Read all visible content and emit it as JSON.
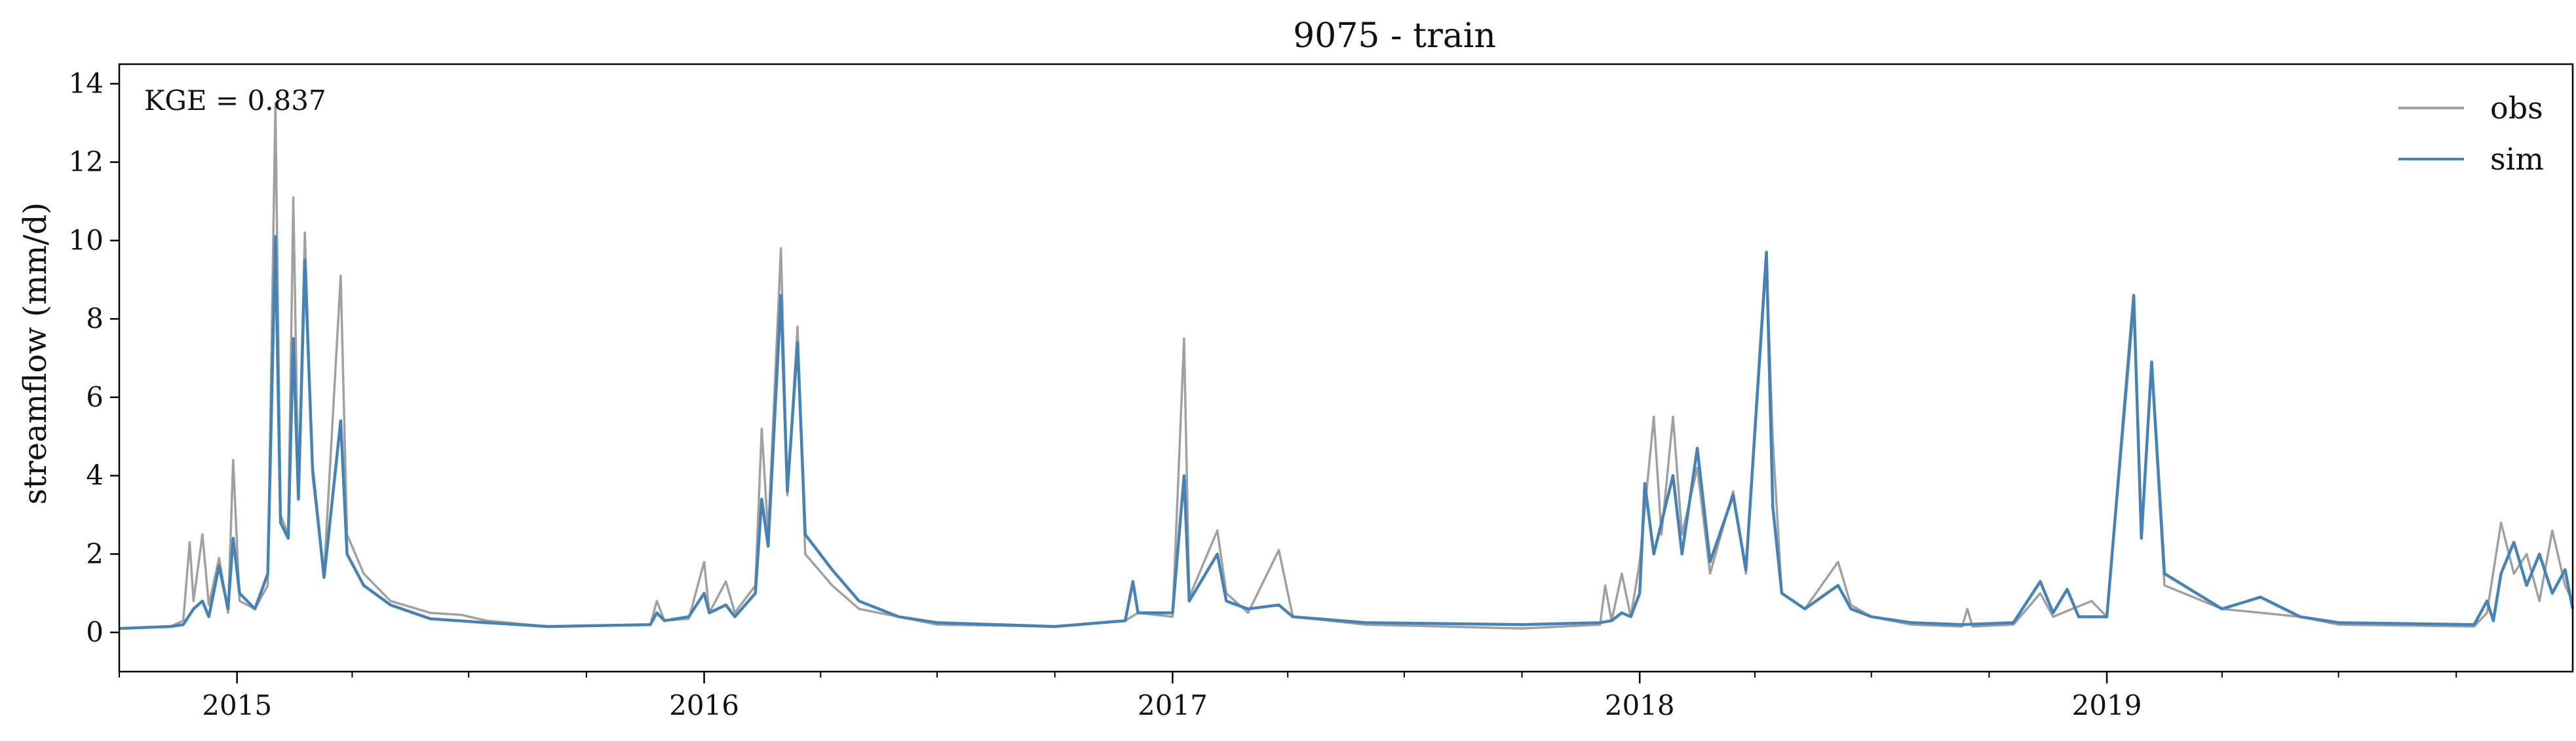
{
  "chart_data": {
    "type": "line",
    "title": "9075 - train",
    "xlabel": "",
    "ylabel": "streamflow (mm/d)",
    "annotation": "KGE = 0.837",
    "x_range": [
      "2014-10-01",
      "2019-12-31"
    ],
    "ylim": [
      -1,
      14.5
    ],
    "y_ticks": [
      "0",
      "2",
      "4",
      "6",
      "8",
      "10",
      "12",
      "14"
    ],
    "x_ticks": [
      "2015",
      "2016",
      "2017",
      "2018",
      "2019"
    ],
    "grid": false,
    "legend_position": "top-right",
    "series": [
      {
        "name": "obs",
        "color": "#a0a0a0",
        "points": [
          [
            "2014-10-01",
            0.1
          ],
          [
            "2014-11-10",
            0.15
          ],
          [
            "2014-11-20",
            0.3
          ],
          [
            "2014-11-25",
            2.3
          ],
          [
            "2014-11-28",
            0.8
          ],
          [
            "2014-12-05",
            2.5
          ],
          [
            "2014-12-10",
            0.7
          ],
          [
            "2014-12-18",
            1.9
          ],
          [
            "2014-12-25",
            0.5
          ],
          [
            "2014-12-29",
            4.4
          ],
          [
            "2015-01-03",
            0.8
          ],
          [
            "2015-01-15",
            0.6
          ],
          [
            "2015-01-25",
            1.2
          ],
          [
            "2015-01-31",
            13.5
          ],
          [
            "2015-02-04",
            3.0
          ],
          [
            "2015-02-10",
            2.5
          ],
          [
            "2015-02-14",
            11.1
          ],
          [
            "2015-02-18",
            3.5
          ],
          [
            "2015-02-23",
            10.2
          ],
          [
            "2015-03-01",
            4.0
          ],
          [
            "2015-03-10",
            1.5
          ],
          [
            "2015-03-23",
            9.1
          ],
          [
            "2015-03-28",
            2.5
          ],
          [
            "2015-04-10",
            1.5
          ],
          [
            "2015-05-01",
            0.8
          ],
          [
            "2015-06-01",
            0.5
          ],
          [
            "2015-06-25",
            0.45
          ],
          [
            "2015-07-15",
            0.3
          ],
          [
            "2015-09-01",
            0.15
          ],
          [
            "2015-11-20",
            0.2
          ],
          [
            "2015-11-25",
            0.8
          ],
          [
            "2015-12-01",
            0.3
          ],
          [
            "2015-12-20",
            0.35
          ],
          [
            "2016-01-01",
            1.8
          ],
          [
            "2016-01-05",
            0.5
          ],
          [
            "2016-01-18",
            1.3
          ],
          [
            "2016-01-25",
            0.5
          ],
          [
            "2016-02-10",
            1.2
          ],
          [
            "2016-02-15",
            5.2
          ],
          [
            "2016-02-20",
            2.5
          ],
          [
            "2016-03-01",
            9.8
          ],
          [
            "2016-03-06",
            3.5
          ],
          [
            "2016-03-14",
            7.8
          ],
          [
            "2016-03-20",
            2.0
          ],
          [
            "2016-04-10",
            1.2
          ],
          [
            "2016-05-01",
            0.6
          ],
          [
            "2016-06-01",
            0.4
          ],
          [
            "2016-07-01",
            0.2
          ],
          [
            "2016-10-01",
            0.15
          ],
          [
            "2016-11-25",
            0.3
          ],
          [
            "2016-12-05",
            0.5
          ],
          [
            "2017-01-01",
            0.4
          ],
          [
            "2017-01-10",
            7.5
          ],
          [
            "2017-01-14",
            0.9
          ],
          [
            "2017-02-05",
            2.6
          ],
          [
            "2017-02-12",
            1.0
          ],
          [
            "2017-03-01",
            0.5
          ],
          [
            "2017-03-25",
            2.1
          ],
          [
            "2017-04-05",
            0.4
          ],
          [
            "2017-06-01",
            0.2
          ],
          [
            "2017-10-01",
            0.1
          ],
          [
            "2017-12-01",
            0.2
          ],
          [
            "2017-12-05",
            1.2
          ],
          [
            "2017-12-10",
            0.3
          ],
          [
            "2017-12-18",
            1.5
          ],
          [
            "2017-12-25",
            0.4
          ],
          [
            "2018-01-01",
            1.8
          ],
          [
            "2018-01-12",
            5.5
          ],
          [
            "2018-01-18",
            2.5
          ],
          [
            "2018-01-27",
            5.5
          ],
          [
            "2018-02-03",
            2.5
          ],
          [
            "2018-02-15",
            4.2
          ],
          [
            "2018-02-25",
            1.5
          ],
          [
            "2018-03-15",
            3.6
          ],
          [
            "2018-03-25",
            1.5
          ],
          [
            "2018-04-10",
            9.5
          ],
          [
            "2018-04-15",
            4.9
          ],
          [
            "2018-04-22",
            1.0
          ],
          [
            "2018-05-10",
            0.6
          ],
          [
            "2018-06-05",
            1.8
          ],
          [
            "2018-06-15",
            0.7
          ],
          [
            "2018-07-01",
            0.4
          ],
          [
            "2018-08-01",
            0.2
          ],
          [
            "2018-09-10",
            0.15
          ],
          [
            "2018-09-14",
            0.6
          ],
          [
            "2018-09-18",
            0.15
          ],
          [
            "2018-10-20",
            0.2
          ],
          [
            "2018-11-10",
            1.0
          ],
          [
            "2018-11-20",
            0.4
          ],
          [
            "2018-12-20",
            0.8
          ],
          [
            "2019-01-01",
            0.4
          ],
          [
            "2019-01-22",
            8.3
          ],
          [
            "2019-01-28",
            2.6
          ],
          [
            "2019-02-05",
            6.8
          ],
          [
            "2019-02-15",
            1.2
          ],
          [
            "2019-04-01",
            0.6
          ],
          [
            "2019-06-01",
            0.4
          ],
          [
            "2019-07-01",
            0.2
          ],
          [
            "2019-10-15",
            0.15
          ],
          [
            "2019-10-25",
            0.5
          ],
          [
            "2019-11-05",
            2.8
          ],
          [
            "2019-11-15",
            1.5
          ],
          [
            "2019-11-25",
            2.0
          ],
          [
            "2019-12-05",
            0.8
          ],
          [
            "2019-12-15",
            2.6
          ],
          [
            "2019-12-25",
            1.2
          ],
          [
            "2019-12-31",
            0.8
          ]
        ]
      },
      {
        "name": "sim",
        "color": "#4682b4",
        "points": [
          [
            "2014-10-01",
            0.1
          ],
          [
            "2014-11-10",
            0.15
          ],
          [
            "2014-11-20",
            0.2
          ],
          [
            "2014-11-28",
            0.6
          ],
          [
            "2014-12-05",
            0.8
          ],
          [
            "2014-12-10",
            0.4
          ],
          [
            "2014-12-18",
            1.7
          ],
          [
            "2014-12-25",
            0.6
          ],
          [
            "2014-12-29",
            2.4
          ],
          [
            "2015-01-03",
            1.0
          ],
          [
            "2015-01-15",
            0.6
          ],
          [
            "2015-01-25",
            1.5
          ],
          [
            "2015-01-31",
            10.1
          ],
          [
            "2015-02-04",
            2.8
          ],
          [
            "2015-02-10",
            2.4
          ],
          [
            "2015-02-14",
            7.5
          ],
          [
            "2015-02-18",
            3.4
          ],
          [
            "2015-02-23",
            9.5
          ],
          [
            "2015-03-01",
            4.2
          ],
          [
            "2015-03-10",
            1.4
          ],
          [
            "2015-03-23",
            5.4
          ],
          [
            "2015-03-28",
            2.0
          ],
          [
            "2015-04-10",
            1.2
          ],
          [
            "2015-05-01",
            0.7
          ],
          [
            "2015-06-01",
            0.35
          ],
          [
            "2015-07-15",
            0.25
          ],
          [
            "2015-09-01",
            0.15
          ],
          [
            "2015-11-20",
            0.2
          ],
          [
            "2015-11-25",
            0.5
          ],
          [
            "2015-12-01",
            0.3
          ],
          [
            "2015-12-20",
            0.4
          ],
          [
            "2016-01-01",
            1.0
          ],
          [
            "2016-01-05",
            0.5
          ],
          [
            "2016-01-18",
            0.7
          ],
          [
            "2016-01-25",
            0.4
          ],
          [
            "2016-02-10",
            1.0
          ],
          [
            "2016-02-15",
            3.4
          ],
          [
            "2016-02-20",
            2.2
          ],
          [
            "2016-03-01",
            8.6
          ],
          [
            "2016-03-06",
            3.6
          ],
          [
            "2016-03-14",
            7.4
          ],
          [
            "2016-03-20",
            2.5
          ],
          [
            "2016-04-10",
            1.6
          ],
          [
            "2016-05-01",
            0.8
          ],
          [
            "2016-06-01",
            0.4
          ],
          [
            "2016-07-01",
            0.25
          ],
          [
            "2016-10-01",
            0.15
          ],
          [
            "2016-11-25",
            0.3
          ],
          [
            "2016-12-01",
            1.3
          ],
          [
            "2016-12-05",
            0.5
          ],
          [
            "2017-01-01",
            0.5
          ],
          [
            "2017-01-10",
            4.0
          ],
          [
            "2017-01-14",
            0.8
          ],
          [
            "2017-02-05",
            2.0
          ],
          [
            "2017-02-12",
            0.8
          ],
          [
            "2017-03-01",
            0.6
          ],
          [
            "2017-03-25",
            0.7
          ],
          [
            "2017-04-05",
            0.4
          ],
          [
            "2017-06-01",
            0.25
          ],
          [
            "2017-10-01",
            0.2
          ],
          [
            "2017-12-01",
            0.25
          ],
          [
            "2017-12-10",
            0.3
          ],
          [
            "2017-12-18",
            0.5
          ],
          [
            "2017-12-25",
            0.4
          ],
          [
            "2018-01-01",
            1.0
          ],
          [
            "2018-01-05",
            3.8
          ],
          [
            "2018-01-12",
            2.0
          ],
          [
            "2018-01-18",
            2.8
          ],
          [
            "2018-01-27",
            4.0
          ],
          [
            "2018-02-03",
            2.0
          ],
          [
            "2018-02-15",
            4.7
          ],
          [
            "2018-02-25",
            1.8
          ],
          [
            "2018-03-15",
            3.5
          ],
          [
            "2018-03-25",
            1.6
          ],
          [
            "2018-04-10",
            9.7
          ],
          [
            "2018-04-15",
            3.2
          ],
          [
            "2018-04-22",
            1.0
          ],
          [
            "2018-05-10",
            0.6
          ],
          [
            "2018-06-05",
            1.2
          ],
          [
            "2018-06-15",
            0.6
          ],
          [
            "2018-07-01",
            0.4
          ],
          [
            "2018-08-01",
            0.25
          ],
          [
            "2018-09-10",
            0.2
          ],
          [
            "2018-10-20",
            0.25
          ],
          [
            "2018-11-10",
            1.3
          ],
          [
            "2018-11-20",
            0.5
          ],
          [
            "2018-12-01",
            1.1
          ],
          [
            "2018-12-10",
            0.4
          ],
          [
            "2019-01-01",
            0.4
          ],
          [
            "2019-01-22",
            8.6
          ],
          [
            "2019-01-28",
            2.4
          ],
          [
            "2019-02-05",
            6.9
          ],
          [
            "2019-02-15",
            1.5
          ],
          [
            "2019-04-01",
            0.6
          ],
          [
            "2019-05-01",
            0.9
          ],
          [
            "2019-06-01",
            0.4
          ],
          [
            "2019-07-01",
            0.25
          ],
          [
            "2019-10-15",
            0.2
          ],
          [
            "2019-10-25",
            0.8
          ],
          [
            "2019-10-30",
            0.3
          ],
          [
            "2019-11-05",
            1.5
          ],
          [
            "2019-11-15",
            2.3
          ],
          [
            "2019-11-25",
            1.2
          ],
          [
            "2019-12-05",
            2.0
          ],
          [
            "2019-12-15",
            1.0
          ],
          [
            "2019-12-25",
            1.6
          ],
          [
            "2019-12-31",
            0.6
          ]
        ]
      }
    ]
  }
}
